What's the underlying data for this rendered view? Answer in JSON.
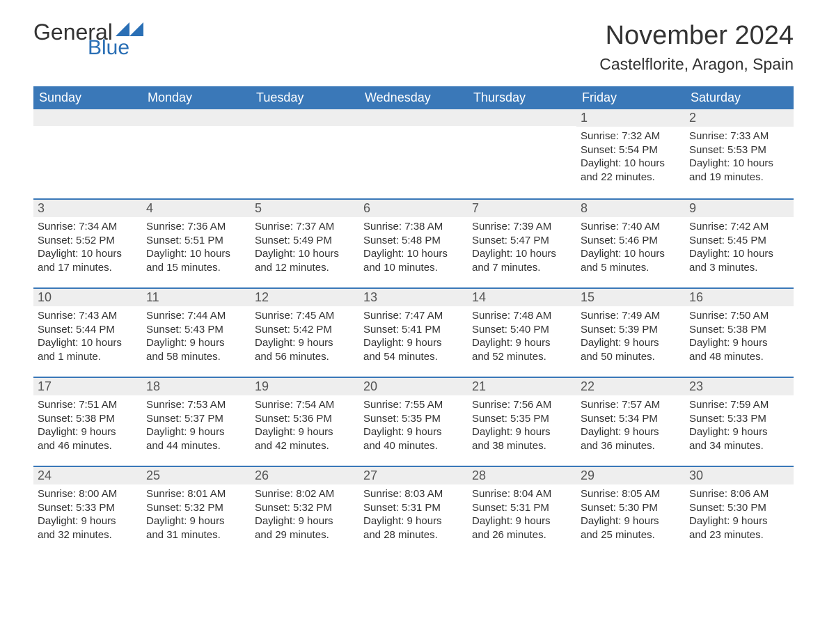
{
  "logo": {
    "text1": "General",
    "text2": "Blue",
    "tri_color": "#2a6fb5"
  },
  "title": "November 2024",
  "location": "Castelflorite, Aragon, Spain",
  "colors": {
    "header_bg": "#3a78b8",
    "header_text": "#ffffff",
    "daynum_bg": "#eeeeee",
    "border": "#3a78b8",
    "body_text": "#333333"
  },
  "weekdays": [
    "Sunday",
    "Monday",
    "Tuesday",
    "Wednesday",
    "Thursday",
    "Friday",
    "Saturday"
  ],
  "weeks": [
    [
      null,
      null,
      null,
      null,
      null,
      {
        "d": "1",
        "sr": "Sunrise: 7:32 AM",
        "ss": "Sunset: 5:54 PM",
        "dl1": "Daylight: 10 hours",
        "dl2": "and 22 minutes."
      },
      {
        "d": "2",
        "sr": "Sunrise: 7:33 AM",
        "ss": "Sunset: 5:53 PM",
        "dl1": "Daylight: 10 hours",
        "dl2": "and 19 minutes."
      }
    ],
    [
      {
        "d": "3",
        "sr": "Sunrise: 7:34 AM",
        "ss": "Sunset: 5:52 PM",
        "dl1": "Daylight: 10 hours",
        "dl2": "and 17 minutes."
      },
      {
        "d": "4",
        "sr": "Sunrise: 7:36 AM",
        "ss": "Sunset: 5:51 PM",
        "dl1": "Daylight: 10 hours",
        "dl2": "and 15 minutes."
      },
      {
        "d": "5",
        "sr": "Sunrise: 7:37 AM",
        "ss": "Sunset: 5:49 PM",
        "dl1": "Daylight: 10 hours",
        "dl2": "and 12 minutes."
      },
      {
        "d": "6",
        "sr": "Sunrise: 7:38 AM",
        "ss": "Sunset: 5:48 PM",
        "dl1": "Daylight: 10 hours",
        "dl2": "and 10 minutes."
      },
      {
        "d": "7",
        "sr": "Sunrise: 7:39 AM",
        "ss": "Sunset: 5:47 PM",
        "dl1": "Daylight: 10 hours",
        "dl2": "and 7 minutes."
      },
      {
        "d": "8",
        "sr": "Sunrise: 7:40 AM",
        "ss": "Sunset: 5:46 PM",
        "dl1": "Daylight: 10 hours",
        "dl2": "and 5 minutes."
      },
      {
        "d": "9",
        "sr": "Sunrise: 7:42 AM",
        "ss": "Sunset: 5:45 PM",
        "dl1": "Daylight: 10 hours",
        "dl2": "and 3 minutes."
      }
    ],
    [
      {
        "d": "10",
        "sr": "Sunrise: 7:43 AM",
        "ss": "Sunset: 5:44 PM",
        "dl1": "Daylight: 10 hours",
        "dl2": "and 1 minute."
      },
      {
        "d": "11",
        "sr": "Sunrise: 7:44 AM",
        "ss": "Sunset: 5:43 PM",
        "dl1": "Daylight: 9 hours",
        "dl2": "and 58 minutes."
      },
      {
        "d": "12",
        "sr": "Sunrise: 7:45 AM",
        "ss": "Sunset: 5:42 PM",
        "dl1": "Daylight: 9 hours",
        "dl2": "and 56 minutes."
      },
      {
        "d": "13",
        "sr": "Sunrise: 7:47 AM",
        "ss": "Sunset: 5:41 PM",
        "dl1": "Daylight: 9 hours",
        "dl2": "and 54 minutes."
      },
      {
        "d": "14",
        "sr": "Sunrise: 7:48 AM",
        "ss": "Sunset: 5:40 PM",
        "dl1": "Daylight: 9 hours",
        "dl2": "and 52 minutes."
      },
      {
        "d": "15",
        "sr": "Sunrise: 7:49 AM",
        "ss": "Sunset: 5:39 PM",
        "dl1": "Daylight: 9 hours",
        "dl2": "and 50 minutes."
      },
      {
        "d": "16",
        "sr": "Sunrise: 7:50 AM",
        "ss": "Sunset: 5:38 PM",
        "dl1": "Daylight: 9 hours",
        "dl2": "and 48 minutes."
      }
    ],
    [
      {
        "d": "17",
        "sr": "Sunrise: 7:51 AM",
        "ss": "Sunset: 5:38 PM",
        "dl1": "Daylight: 9 hours",
        "dl2": "and 46 minutes."
      },
      {
        "d": "18",
        "sr": "Sunrise: 7:53 AM",
        "ss": "Sunset: 5:37 PM",
        "dl1": "Daylight: 9 hours",
        "dl2": "and 44 minutes."
      },
      {
        "d": "19",
        "sr": "Sunrise: 7:54 AM",
        "ss": "Sunset: 5:36 PM",
        "dl1": "Daylight: 9 hours",
        "dl2": "and 42 minutes."
      },
      {
        "d": "20",
        "sr": "Sunrise: 7:55 AM",
        "ss": "Sunset: 5:35 PM",
        "dl1": "Daylight: 9 hours",
        "dl2": "and 40 minutes."
      },
      {
        "d": "21",
        "sr": "Sunrise: 7:56 AM",
        "ss": "Sunset: 5:35 PM",
        "dl1": "Daylight: 9 hours",
        "dl2": "and 38 minutes."
      },
      {
        "d": "22",
        "sr": "Sunrise: 7:57 AM",
        "ss": "Sunset: 5:34 PM",
        "dl1": "Daylight: 9 hours",
        "dl2": "and 36 minutes."
      },
      {
        "d": "23",
        "sr": "Sunrise: 7:59 AM",
        "ss": "Sunset: 5:33 PM",
        "dl1": "Daylight: 9 hours",
        "dl2": "and 34 minutes."
      }
    ],
    [
      {
        "d": "24",
        "sr": "Sunrise: 8:00 AM",
        "ss": "Sunset: 5:33 PM",
        "dl1": "Daylight: 9 hours",
        "dl2": "and 32 minutes."
      },
      {
        "d": "25",
        "sr": "Sunrise: 8:01 AM",
        "ss": "Sunset: 5:32 PM",
        "dl1": "Daylight: 9 hours",
        "dl2": "and 31 minutes."
      },
      {
        "d": "26",
        "sr": "Sunrise: 8:02 AM",
        "ss": "Sunset: 5:32 PM",
        "dl1": "Daylight: 9 hours",
        "dl2": "and 29 minutes."
      },
      {
        "d": "27",
        "sr": "Sunrise: 8:03 AM",
        "ss": "Sunset: 5:31 PM",
        "dl1": "Daylight: 9 hours",
        "dl2": "and 28 minutes."
      },
      {
        "d": "28",
        "sr": "Sunrise: 8:04 AM",
        "ss": "Sunset: 5:31 PM",
        "dl1": "Daylight: 9 hours",
        "dl2": "and 26 minutes."
      },
      {
        "d": "29",
        "sr": "Sunrise: 8:05 AM",
        "ss": "Sunset: 5:30 PM",
        "dl1": "Daylight: 9 hours",
        "dl2": "and 25 minutes."
      },
      {
        "d": "30",
        "sr": "Sunrise: 8:06 AM",
        "ss": "Sunset: 5:30 PM",
        "dl1": "Daylight: 9 hours",
        "dl2": "and 23 minutes."
      }
    ]
  ]
}
